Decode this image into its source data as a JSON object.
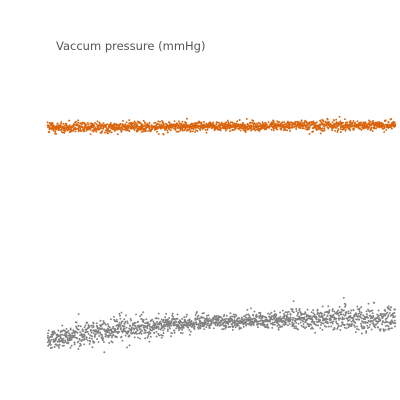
{
  "chart_data": {
    "type": "scatter",
    "title": "Vaccum pressure  (mmHg)",
    "xlabel": "",
    "ylabel": "",
    "grid": false,
    "legend": "none",
    "x_range": [
      0,
      1
    ],
    "y_range": [
      0,
      1
    ],
    "series": [
      {
        "color": "#d9650e",
        "points_per_column": 5,
        "start_level": 0.757,
        "end_level": 0.764,
        "spread": 0.0133
      },
      {
        "color": "#808080",
        "points_per_column": 5,
        "start_level": 0.167,
        "end_level": 0.227,
        "spread": 0.0267
      }
    ]
  }
}
